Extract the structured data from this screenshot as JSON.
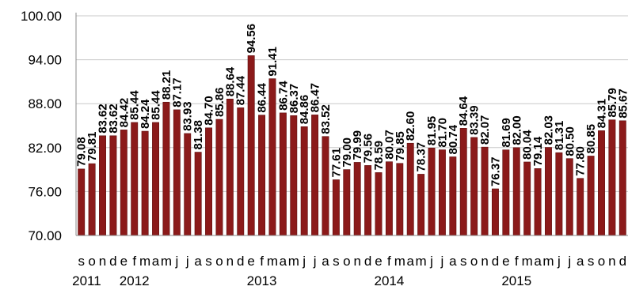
{
  "chart_data": {
    "type": "bar",
    "categories": [
      "s",
      "o",
      "n",
      "d",
      "e",
      "f",
      "m",
      "a",
      "m",
      "j",
      "j",
      "a",
      "s",
      "o",
      "n",
      "d",
      "e",
      "f",
      "m",
      "a",
      "m",
      "j",
      "j",
      "a",
      "s",
      "o",
      "n",
      "d",
      "e",
      "f",
      "m",
      "a",
      "m",
      "j",
      "j",
      "a",
      "s",
      "o",
      "n",
      "d",
      "e",
      "f",
      "m",
      "a",
      "m",
      "j",
      "j",
      "a",
      "s",
      "o",
      "n",
      "d"
    ],
    "year_labels": [
      {
        "label": "2011",
        "index": 0.5
      },
      {
        "label": "2012",
        "index": 5
      },
      {
        "label": "2013",
        "index": 17
      },
      {
        "label": "2014",
        "index": 29
      },
      {
        "label": "2015",
        "index": 41
      }
    ],
    "values": [
      79.08,
      79.81,
      83.62,
      83.62,
      84.42,
      85.44,
      84.24,
      85.44,
      88.21,
      87.17,
      83.93,
      81.38,
      84.7,
      85.86,
      88.64,
      87.44,
      94.56,
      86.44,
      91.41,
      86.74,
      86.37,
      84.86,
      86.47,
      83.52,
      77.61,
      79.0,
      79.99,
      79.56,
      78.59,
      80.07,
      79.85,
      82.6,
      78.37,
      81.95,
      81.7,
      80.74,
      84.64,
      83.39,
      82.07,
      76.37,
      81.69,
      82.0,
      80.04,
      79.14,
      82.03,
      81.31,
      80.5,
      77.8,
      80.85,
      84.31,
      85.79,
      85.67
    ],
    "label_texts": [
      "79.08",
      "79.81",
      "83.62",
      "83.62",
      "84.42",
      "85.44",
      "84.24",
      "85.44",
      "88.21",
      "87.17",
      "83.93",
      "81.38",
      "84.70",
      "85.86",
      "88.64",
      "87.44",
      "94.56",
      "86.44",
      "91.41",
      "86.74",
      "86.37",
      "84.86",
      "86.47",
      "83.52",
      "77.61",
      "79.00",
      "79.99",
      "79.56",
      "78.59",
      "80.07",
      "79.85",
      "82.60",
      "78.37",
      "81.95",
      "81.70",
      "80.74",
      "84.64",
      "83.39",
      "82.07",
      "76.37",
      "81.69",
      "82.00",
      "80.04",
      "79.14",
      "82.03",
      "81.31",
      "80.50",
      "77.80",
      "80.85",
      "84.31",
      "85.79",
      "85.67"
    ],
    "yticks": [
      "100.00",
      "94.00",
      "88.00",
      "82.00",
      "76.00",
      "70.00"
    ],
    "ylim": [
      70,
      100
    ],
    "grid": true,
    "legend": "none",
    "bar_color": "#8b1a1a",
    "title": "",
    "xlabel": "",
    "ylabel": ""
  }
}
